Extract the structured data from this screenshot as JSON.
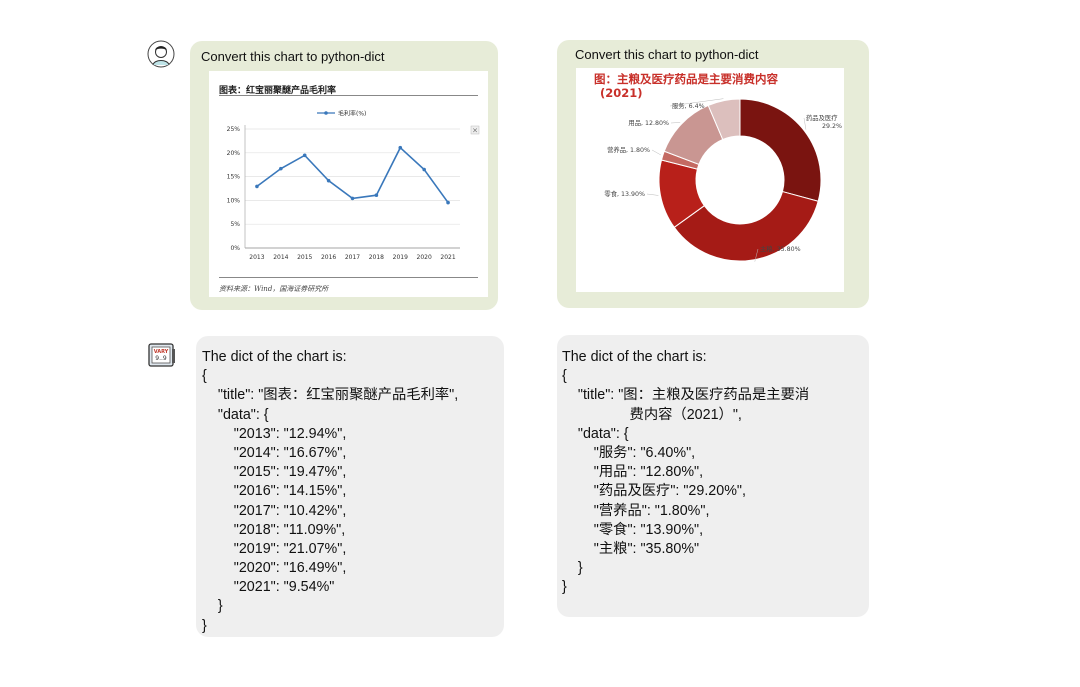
{
  "conversation": {
    "left": {
      "prompt": "Convert this chart to python-dict",
      "chart_image": {
        "title": "图表：红宝丽聚醚产品毛利率",
        "legend": "毛利率(%)",
        "source": "资料来源：Wind，国海证券研究所"
      },
      "response_lines": [
        "The dict of the chart is:",
        "{",
        "    \"title\": \"图表：红宝丽聚醚产品毛利率\",",
        "    \"data\": {",
        "        \"2013\": \"12.94%\",",
        "        \"2014\": \"16.67%\",",
        "        \"2015\": \"19.47%\",",
        "        \"2016\": \"14.15%\",",
        "        \"2017\": \"10.42%\",",
        "        \"2018\": \"11.09%\",",
        "        \"2019\": \"21.07%\",",
        "        \"2020\": \"16.49%\",",
        "        \"2021\": \"9.54%\"",
        "    }",
        "}"
      ]
    },
    "right": {
      "prompt": "Convert this chart to python-dict",
      "chart_image": {
        "title_line1": "图：主粮及医疗药品是主要消费内容",
        "title_line2": "(2021)"
      },
      "response_lines": [
        "The dict of the chart is:",
        "{",
        "    \"title\": \"图：主粮及医疗药品是主要消",
        "                 费内容（2021）\",",
        "    \"data\": {",
        "        \"服务\": \"6.40%\",",
        "        \"用品\": \"12.80%\",",
        "        \"药品及医疗\": \"29.20%\",",
        "        \"营养品\": \"1.80%\",",
        "        \"零食\": \"13.90%\",",
        "        \"主粮\": \"35.80%\"",
        "    }",
        "}"
      ]
    }
  },
  "chart_data": [
    {
      "type": "line",
      "title": "图表：红宝丽聚醚产品毛利率",
      "x": [
        "2013",
        "2014",
        "2015",
        "2016",
        "2017",
        "2018",
        "2019",
        "2020",
        "2021"
      ],
      "series": [
        {
          "name": "毛利率(%)",
          "values": [
            12.94,
            16.67,
            19.47,
            14.15,
            10.42,
            11.09,
            21.07,
            16.49,
            9.54
          ],
          "color": "#3a78bb"
        }
      ],
      "yticks": [
        "0%",
        "5%",
        "10%",
        "15%",
        "20%",
        "25%"
      ],
      "ylim": [
        0,
        25
      ],
      "grid": true,
      "legend_position": "top-center"
    },
    {
      "type": "pie",
      "title": "图：主粮及医疗药品是主要消费内容 (2021)",
      "slices": [
        {
          "label": "药品及医疗",
          "value": 29.2,
          "text": "药品及医疗\n29.2%",
          "color": "#7a1410"
        },
        {
          "label": "主粮",
          "value": 35.8,
          "text": "主粮, 35.80%",
          "color": "#a51b16"
        },
        {
          "label": "零食",
          "value": 13.9,
          "text": "零食, 13.90%",
          "color": "#b8201a"
        },
        {
          "label": "营养品",
          "value": 1.8,
          "text": "营养品, 1.80%",
          "color": "#c46a62"
        },
        {
          "label": "用品",
          "value": 12.8,
          "text": "用品, 12.80%",
          "color": "#c99692"
        },
        {
          "label": "服务",
          "value": 6.4,
          "text": "服务, 6.4%",
          "color": "#dcbfbd"
        }
      ],
      "donut": true
    }
  ]
}
